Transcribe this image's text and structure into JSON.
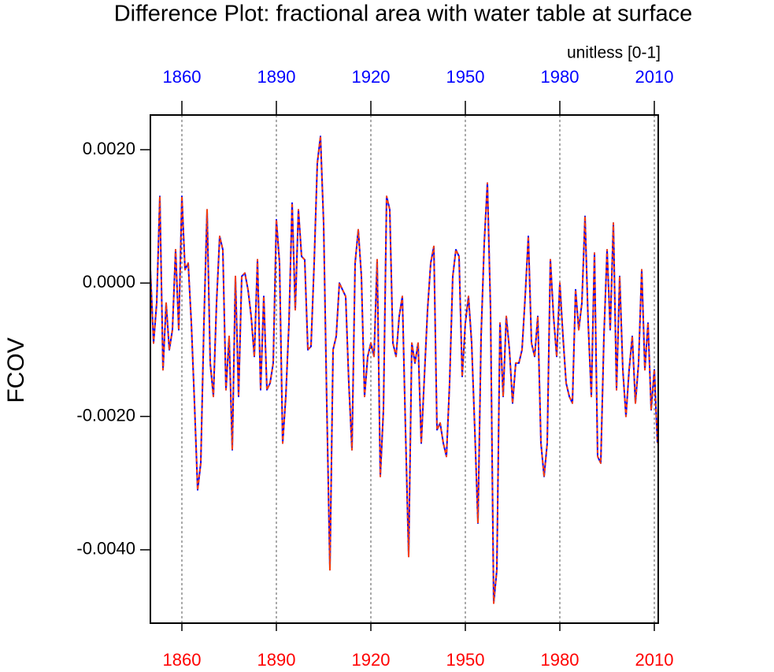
{
  "chart_data": {
    "type": "line",
    "title": "Difference Plot: fractional area with water table at surface",
    "units_label": "unitless [0-1]",
    "y_label": "FCOV",
    "x": [
      1850,
      1851,
      1852,
      1853,
      1854,
      1855,
      1856,
      1857,
      1858,
      1859,
      1860,
      1861,
      1862,
      1863,
      1864,
      1865,
      1866,
      1867,
      1868,
      1869,
      1870,
      1871,
      1872,
      1873,
      1874,
      1875,
      1876,
      1877,
      1878,
      1879,
      1880,
      1881,
      1882,
      1883,
      1884,
      1885,
      1886,
      1887,
      1888,
      1889,
      1890,
      1891,
      1892,
      1893,
      1894,
      1895,
      1896,
      1897,
      1898,
      1899,
      1900,
      1901,
      1902,
      1903,
      1904,
      1905,
      1906,
      1907,
      1908,
      1909,
      1910,
      1911,
      1912,
      1913,
      1914,
      1915,
      1916,
      1917,
      1918,
      1919,
      1920,
      1921,
      1922,
      1923,
      1924,
      1925,
      1926,
      1927,
      1928,
      1929,
      1930,
      1931,
      1932,
      1933,
      1934,
      1935,
      1936,
      1937,
      1938,
      1939,
      1940,
      1941,
      1942,
      1943,
      1944,
      1945,
      1946,
      1947,
      1948,
      1949,
      1950,
      1951,
      1952,
      1953,
      1954,
      1955,
      1956,
      1957,
      1958,
      1959,
      1960,
      1961,
      1962,
      1963,
      1964,
      1965,
      1966,
      1967,
      1968,
      1969,
      1970,
      1971,
      1972,
      1973,
      1974,
      1975,
      1976,
      1977,
      1978,
      1979,
      1980,
      1981,
      1982,
      1983,
      1984,
      1985,
      1986,
      1987,
      1988,
      1989,
      1990,
      1991,
      1992,
      1993,
      1994,
      1995,
      1996,
      1997,
      1998,
      1999,
      2000,
      2001,
      2002,
      2003,
      2004,
      2005,
      2006,
      2007,
      2008,
      2009,
      2010,
      2011
    ],
    "series": [
      {
        "color": "#0000ff",
        "dash": "solid",
        "values": [
          0.0002,
          -0.0009,
          -0.0003,
          0.0013,
          -0.0013,
          -0.0003,
          -0.001,
          -0.0007,
          0.0005,
          -0.0007,
          0.0013,
          0.0002,
          0.0003,
          -0.0006,
          -0.0018,
          -0.0031,
          -0.0027,
          -0.0006,
          0.0011,
          -0.0012,
          -0.0017,
          -0.0003,
          0.0007,
          0.0005,
          -0.0016,
          -0.0008,
          -0.0025,
          0.0001,
          -0.0017,
          0.0001,
          0.00015,
          -0.0001,
          -0.0005,
          -0.0011,
          0.00035,
          -0.0016,
          -0.0002,
          -0.0016,
          -0.0015,
          -0.0012,
          0.00095,
          0.0003,
          -0.0024,
          -0.0017,
          -0.0006,
          0.0012,
          -0.0004,
          0.0011,
          0.0004,
          0.00035,
          -0.001,
          -0.00095,
          0.0003,
          0.0018,
          0.0022,
          0.0009,
          -0.0018,
          -0.0043,
          -0.001,
          -0.0008,
          0.0,
          -0.0001,
          -0.0002,
          -0.0015,
          -0.0025,
          0.0003,
          0.0008,
          0.0001,
          -0.0017,
          -0.0011,
          -0.0009,
          -0.0011,
          0.00035,
          -0.0029,
          -0.0019,
          0.0013,
          0.0011,
          -0.0009,
          -0.0011,
          -0.0005,
          -0.0002,
          -0.0022,
          -0.0041,
          -0.0009,
          -0.0012,
          -0.0009,
          -0.0024,
          -0.0014,
          -0.0004,
          0.0003,
          0.00055,
          -0.0022,
          -0.0021,
          -0.0024,
          -0.0026,
          -0.0015,
          0.0001,
          0.0005,
          0.0004,
          -0.0014,
          -0.0006,
          -0.0002,
          -0.0009,
          -0.0022,
          -0.0036,
          -0.0008,
          0.0006,
          0.0015,
          -0.0004,
          -0.0048,
          -0.0043,
          -0.0006,
          -0.0017,
          -0.0005,
          -0.001,
          -0.0018,
          -0.0012,
          -0.0012,
          -0.001,
          -0.0002,
          0.0007,
          -0.0009,
          -0.0011,
          -0.0005,
          -0.0024,
          -0.0029,
          -0.0024,
          0.00035,
          -0.0005,
          -0.0011,
          0.0,
          -0.0008,
          -0.0015,
          -0.0017,
          -0.0018,
          -0.0001,
          -0.0007,
          -0.0003,
          0.001,
          -0.0006,
          -0.0017,
          0.00045,
          -0.0026,
          -0.0027,
          -0.0008,
          0.0005,
          -0.0007,
          0.0009,
          -0.0016,
          0.0001,
          -0.0013,
          -0.002,
          -0.0013,
          -0.0008,
          -0.0018,
          -0.0012,
          0.0002,
          -0.0013,
          -0.0006,
          -0.0019,
          -0.0013,
          -0.0024
        ]
      },
      {
        "color": "#ff4000",
        "dash": "dashed",
        "values": [
          0.0002,
          -0.0009,
          -0.0003,
          0.0013,
          -0.0013,
          -0.0003,
          -0.001,
          -0.0007,
          0.0005,
          -0.0007,
          0.0013,
          0.0002,
          0.0003,
          -0.0006,
          -0.0018,
          -0.0031,
          -0.0027,
          -0.0006,
          0.0011,
          -0.0012,
          -0.0017,
          -0.0003,
          0.0007,
          0.0005,
          -0.0016,
          -0.0008,
          -0.0025,
          0.0001,
          -0.0017,
          0.0001,
          0.00015,
          -0.0001,
          -0.0005,
          -0.0011,
          0.00035,
          -0.0016,
          -0.0002,
          -0.0016,
          -0.0015,
          -0.0012,
          0.00095,
          0.0003,
          -0.0024,
          -0.0017,
          -0.0006,
          0.0012,
          -0.0004,
          0.0011,
          0.0004,
          0.00035,
          -0.001,
          -0.00095,
          0.0003,
          0.0018,
          0.0022,
          0.0009,
          -0.0018,
          -0.0043,
          -0.001,
          -0.0008,
          0.0,
          -0.0001,
          -0.0002,
          -0.0015,
          -0.0025,
          0.0003,
          0.0008,
          0.0001,
          -0.0017,
          -0.0011,
          -0.0009,
          -0.0011,
          0.00035,
          -0.0029,
          -0.0019,
          0.0013,
          0.0011,
          -0.0009,
          -0.0011,
          -0.0005,
          -0.0002,
          -0.0022,
          -0.0041,
          -0.0009,
          -0.0012,
          -0.0009,
          -0.0024,
          -0.0014,
          -0.0004,
          0.0003,
          0.00055,
          -0.0022,
          -0.0021,
          -0.0024,
          -0.0026,
          -0.0015,
          0.0001,
          0.0005,
          0.0004,
          -0.0014,
          -0.0006,
          -0.0002,
          -0.0009,
          -0.0022,
          -0.0036,
          -0.0008,
          0.0006,
          0.0015,
          -0.0004,
          -0.0048,
          -0.0043,
          -0.0006,
          -0.0017,
          -0.0005,
          -0.001,
          -0.0018,
          -0.0012,
          -0.0012,
          -0.001,
          -0.0002,
          0.0007,
          -0.0009,
          -0.0011,
          -0.0005,
          -0.0024,
          -0.0029,
          -0.0024,
          0.00035,
          -0.0005,
          -0.0011,
          0.0,
          -0.0008,
          -0.0015,
          -0.0017,
          -0.0018,
          -0.0001,
          -0.0007,
          -0.0003,
          0.001,
          -0.0006,
          -0.0017,
          0.00045,
          -0.0026,
          -0.0027,
          -0.0008,
          0.0005,
          -0.0007,
          0.0009,
          -0.0016,
          0.0001,
          -0.0013,
          -0.002,
          -0.0013,
          -0.0008,
          -0.0018,
          -0.0012,
          0.0002,
          -0.0013,
          -0.0006,
          -0.0019,
          -0.0013,
          -0.0024
        ]
      }
    ],
    "xlim": [
      1850,
      2011.25
    ],
    "xticks": [
      1860,
      1890,
      1920,
      1950,
      1980,
      2010
    ],
    "ylim": [
      -0.0051,
      0.00252
    ],
    "yticks": [
      {
        "value": 0.002,
        "label": "0.0020"
      },
      {
        "value": 0,
        "label": "0.0000"
      },
      {
        "value": -0.002,
        "label": "-0.0020"
      },
      {
        "value": -0.004,
        "label": "-0.0040"
      }
    ],
    "x_grid": true,
    "top_tick_color": "#0000ff",
    "bottom_tick_color": "#ff0000"
  }
}
